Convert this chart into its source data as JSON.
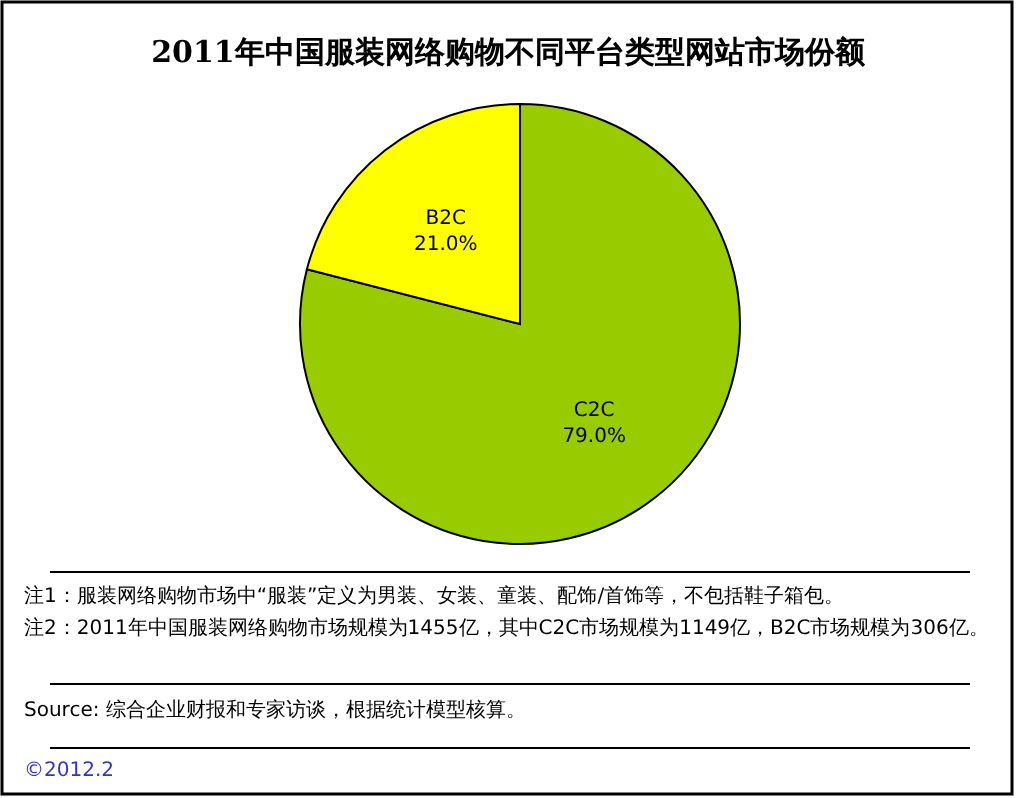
{
  "chart_data": {
    "type": "pie",
    "title": "2011年中国服装网络购物不同平台类型网站市场份额",
    "categories": [
      "C2C",
      "B2C"
    ],
    "values": [
      79.0,
      21.0
    ],
    "colors": [
      "#99cc00",
      "#ffff00"
    ],
    "value_labels": [
      "79.0%",
      "21.0%"
    ],
    "annotations": [
      "注1：服装网络购物市场中“服装”定义为男装、女装、童装、配饰/首饰等，不包括鞋子箱包。",
      "注2：2011年中国服装网络购物市场规模为1455亿，其中C2C市场规模为1149亿，B2C市场规模为306亿。",
      "Source: 综合企业财报和专家访谈，根据统计模型核算。",
      "©2012.2"
    ]
  }
}
